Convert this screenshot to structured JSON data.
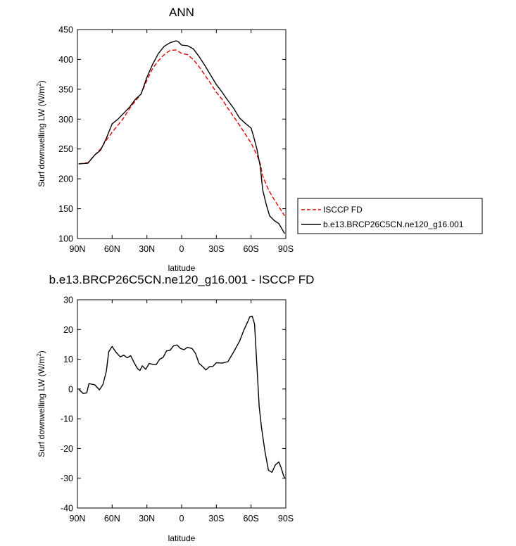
{
  "chart_data": [
    {
      "type": "line",
      "title": "ANN",
      "xlabel": "latitude",
      "ylabel": "Surf downwelling LW (W/m",
      "ylabel_sup": "2",
      "ylabel_end": ")",
      "xlim": [
        90,
        -90
      ],
      "ylim": [
        100,
        450
      ],
      "x_ticks": [
        90,
        60,
        30,
        0,
        -30,
        -60,
        -90
      ],
      "x_tick_labels": [
        "90N",
        "60N",
        "30N",
        "0",
        "30S",
        "60S",
        "90S"
      ],
      "y_ticks": [
        100,
        150,
        200,
        250,
        300,
        350,
        400,
        450
      ],
      "y_tick_labels": [
        "100",
        "150",
        "200",
        "250",
        "300",
        "350",
        "400",
        "450"
      ],
      "legend_position": "right",
      "series": [
        {
          "name": "ISCCP FD",
          "color": "#e00000",
          "dash": "dashed",
          "x": [
            89,
            81,
            75,
            70,
            65,
            60,
            55,
            50,
            45,
            40,
            35,
            30,
            25,
            20,
            15,
            10,
            5,
            0,
            -5,
            -10,
            -15,
            -20,
            -25,
            -30,
            -35,
            -40,
            -45,
            -50,
            -55,
            -60,
            -65,
            -68,
            -70,
            -75,
            -80,
            -85,
            -89
          ],
          "y": [
            225,
            227,
            240,
            250,
            265,
            278,
            290,
            302,
            318,
            330,
            342,
            365,
            385,
            398,
            408,
            415,
            416,
            410,
            408,
            400,
            388,
            374,
            360,
            345,
            333,
            318,
            304,
            290,
            275,
            260,
            240,
            225,
            205,
            182,
            165,
            150,
            138
          ]
        },
        {
          "name": "b.e13.BRCP26C5CN.ne120_g16.001",
          "color": "#000000",
          "dash": "solid",
          "x": [
            89,
            81,
            75,
            70,
            65,
            60,
            55,
            50,
            45,
            40,
            35,
            30,
            25,
            20,
            15,
            10,
            5,
            3,
            0,
            -5,
            -10,
            -15,
            -20,
            -25,
            -30,
            -35,
            -40,
            -45,
            -50,
            -55,
            -60,
            -62,
            -65,
            -68,
            -70,
            -73,
            -76,
            -80,
            -84,
            -87,
            -89
          ],
          "y": [
            225,
            226,
            240,
            248,
            268,
            292,
            300,
            310,
            320,
            333,
            342,
            370,
            392,
            410,
            422,
            428,
            431,
            430,
            424,
            423,
            418,
            405,
            390,
            374,
            358,
            345,
            331,
            318,
            302,
            293,
            285,
            272,
            250,
            220,
            182,
            158,
            138,
            130,
            125,
            115,
            108
          ]
        }
      ]
    },
    {
      "type": "line",
      "title": "b.e13.BRCP26C5CN.ne120_g16.001 - ISCCP FD",
      "xlabel": "latitude",
      "ylabel": "Surf downwelling LW (W/m",
      "ylabel_sup": "2",
      "ylabel_end": ")",
      "xlim": [
        90,
        -90
      ],
      "ylim": [
        -40,
        30
      ],
      "x_ticks": [
        90,
        60,
        30,
        0,
        -30,
        -60,
        -90
      ],
      "x_tick_labels": [
        "90N",
        "60N",
        "30N",
        "0",
        "30S",
        "60S",
        "90S"
      ],
      "y_ticks": [
        -40,
        -30,
        -20,
        -10,
        0,
        10,
        20,
        30
      ],
      "y_tick_labels": [
        "-40",
        "-30",
        "-20",
        "-10",
        "0",
        "10",
        "20",
        "30"
      ],
      "series": [
        {
          "color": "#000000",
          "dash": "solid",
          "x": [
            89,
            87,
            85,
            82,
            80,
            75,
            71,
            68,
            65,
            63,
            60,
            57,
            53,
            50,
            47,
            44,
            41,
            38,
            36,
            34,
            31,
            28,
            25,
            22,
            19,
            16,
            13,
            10,
            7,
            4,
            1,
            -2,
            -5,
            -9,
            -12,
            -15,
            -18,
            -21,
            -24,
            -27,
            -30,
            -35,
            -40,
            -45,
            -50,
            -54,
            -57,
            -59,
            -61,
            -63,
            -65,
            -67,
            -69,
            -72,
            -75,
            -78,
            -81,
            -84,
            -86,
            -88,
            -89
          ],
          "y": [
            0,
            -0.8,
            -1.5,
            -1.3,
            1.8,
            1.4,
            -0.3,
            1.5,
            6,
            12.5,
            14.3,
            12.5,
            10.8,
            11.4,
            10.5,
            11.2,
            8.8,
            6.8,
            6.2,
            7.8,
            6.6,
            8.6,
            8.3,
            8.2,
            10,
            10.6,
            12.8,
            13,
            14.5,
            14.8,
            13.6,
            13.2,
            14,
            13.6,
            12,
            8.6,
            7.6,
            6.4,
            7.5,
            7.6,
            8.8,
            8.7,
            9.2,
            12.5,
            16,
            20,
            22.5,
            24.3,
            24.5,
            21.8,
            8,
            -6,
            -13,
            -21,
            -27.3,
            -28,
            -25.5,
            -24.5,
            -26.5,
            -29,
            -30
          ]
        }
      ]
    }
  ]
}
